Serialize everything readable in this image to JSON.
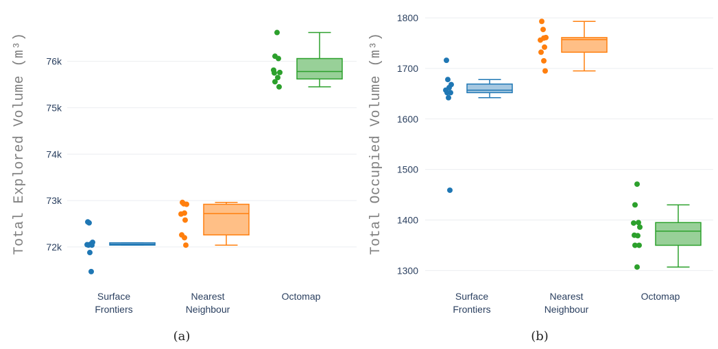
{
  "chart_data": [
    {
      "type": "box",
      "caption": "(a)",
      "ylabel": "Total Explored Volume (m³)",
      "ylim": [
        71350,
        77100
      ],
      "yticks": [
        72000,
        73000,
        74000,
        75000,
        76000
      ],
      "ytick_labels": [
        "72k",
        "73k",
        "74k",
        "75k",
        "76k"
      ],
      "categories": [
        {
          "label_lines": [
            "Surface",
            "Frontiers"
          ],
          "color": "#1f77b4",
          "fill": "#a6c8e1",
          "points": [
            72540,
            72520,
            72100,
            72060,
            72050,
            72040,
            72040,
            71880,
            71470
          ],
          "box": {
            "q1": 72040,
            "median": 72060,
            "q3": 72090,
            "whisker_low": 72040,
            "whisker_high": 72090
          }
        },
        {
          "label_lines": [
            "Nearest",
            "Neighbour"
          ],
          "color": "#ff7f0e",
          "fill": "#ffbf86",
          "points": [
            72960,
            72930,
            72920,
            72730,
            72710,
            72580,
            72260,
            72200,
            72040
          ],
          "box": {
            "q1": 72260,
            "median": 72720,
            "q3": 72920,
            "whisker_low": 72040,
            "whisker_high": 72960
          }
        },
        {
          "label_lines": [
            "Octomap"
          ],
          "color": "#2ca02c",
          "fill": "#98d098",
          "points": [
            76620,
            76110,
            76060,
            75810,
            75760,
            75750,
            75650,
            75560,
            75450
          ],
          "box": {
            "q1": 75620,
            "median": 75780,
            "q3": 76060,
            "whisker_low": 75450,
            "whisker_high": 76620
          }
        }
      ]
    },
    {
      "type": "box",
      "caption": "(b)",
      "ylabel": "Total Occupied Volume (m³)",
      "ylim": [
        1287,
        1815
      ],
      "yticks": [
        1300,
        1400,
        1500,
        1600,
        1700,
        1800
      ],
      "ytick_labels": [
        "1300",
        "1400",
        "1500",
        "1600",
        "1700",
        "1800"
      ],
      "categories": [
        {
          "label_lines": [
            "Surface",
            "Frontiers"
          ],
          "color": "#1f77b4",
          "fill": "#a6c8e1",
          "points": [
            1716,
            1678,
            1668,
            1662,
            1657,
            1652,
            1652,
            1642,
            1459
          ],
          "box": {
            "q1": 1652,
            "median": 1657,
            "q3": 1669,
            "whisker_low": 1642,
            "whisker_high": 1678
          }
        },
        {
          "label_lines": [
            "Nearest",
            "Neighbour"
          ],
          "color": "#ff7f0e",
          "fill": "#ffbf86",
          "points": [
            1793,
            1777,
            1761,
            1760,
            1756,
            1742,
            1732,
            1715,
            1695
          ],
          "box": {
            "q1": 1732,
            "median": 1757,
            "q3": 1761,
            "whisker_low": 1695,
            "whisker_high": 1793
          }
        },
        {
          "label_lines": [
            "Octomap"
          ],
          "color": "#2ca02c",
          "fill": "#98d098",
          "points": [
            1471,
            1430,
            1395,
            1394,
            1386,
            1370,
            1369,
            1350,
            1350,
            1307
          ],
          "box": {
            "q1": 1350,
            "median": 1378,
            "q3": 1395,
            "whisker_low": 1307,
            "whisker_high": 1430
          }
        }
      ]
    }
  ]
}
